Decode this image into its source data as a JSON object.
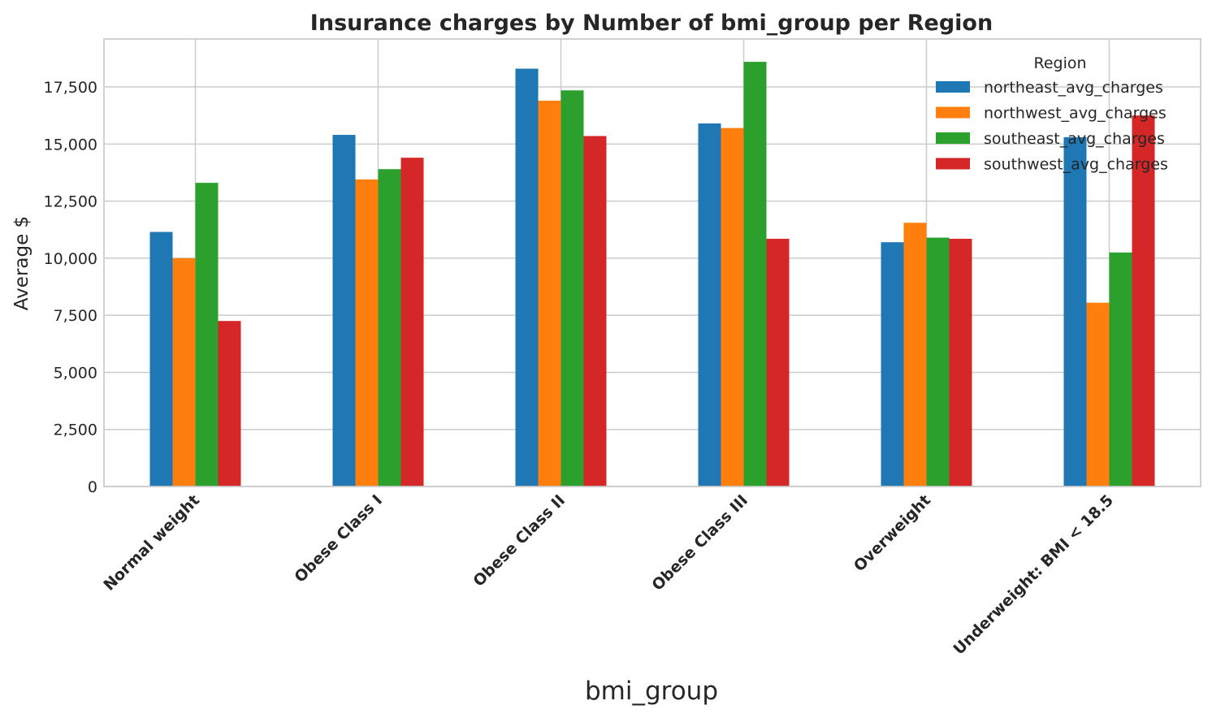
{
  "chart_data": {
    "type": "bar",
    "title": "Insurance charges by Number of bmi_group per Region",
    "xlabel": "bmi_group",
    "ylabel": "Average $",
    "categories": [
      "Normal weight",
      "Obese Class I",
      "Obese Class II",
      "Obese Class III",
      "Overweight",
      "Underweight: BMI < 18.5"
    ],
    "ylim": [
      0,
      19600
    ],
    "yticks": [
      0,
      2500,
      5000,
      7500,
      10000,
      12500,
      15000,
      17500
    ],
    "ytick_labels": [
      "0",
      "2,500",
      "5,000",
      "7,500",
      "10,000",
      "12,500",
      "15,000",
      "17,500"
    ],
    "grid": true,
    "legend": {
      "title": "Region",
      "placement": "top-right"
    },
    "series": [
      {
        "name": "northeast_avg_charges",
        "color": "#1f77b4",
        "values": [
          11150,
          15400,
          18300,
          15900,
          10700,
          15300
        ]
      },
      {
        "name": "northwest_avg_charges",
        "color": "#ff7f0e",
        "values": [
          10000,
          13450,
          16900,
          15700,
          11550,
          8050
        ]
      },
      {
        "name": "southeast_avg_charges",
        "color": "#2ca02c",
        "values": [
          13300,
          13900,
          17350,
          18600,
          10900,
          10250
        ]
      },
      {
        "name": "southwest_avg_charges",
        "color": "#d62728",
        "values": [
          7250,
          14400,
          15350,
          10850,
          10850,
          16250
        ]
      }
    ]
  }
}
